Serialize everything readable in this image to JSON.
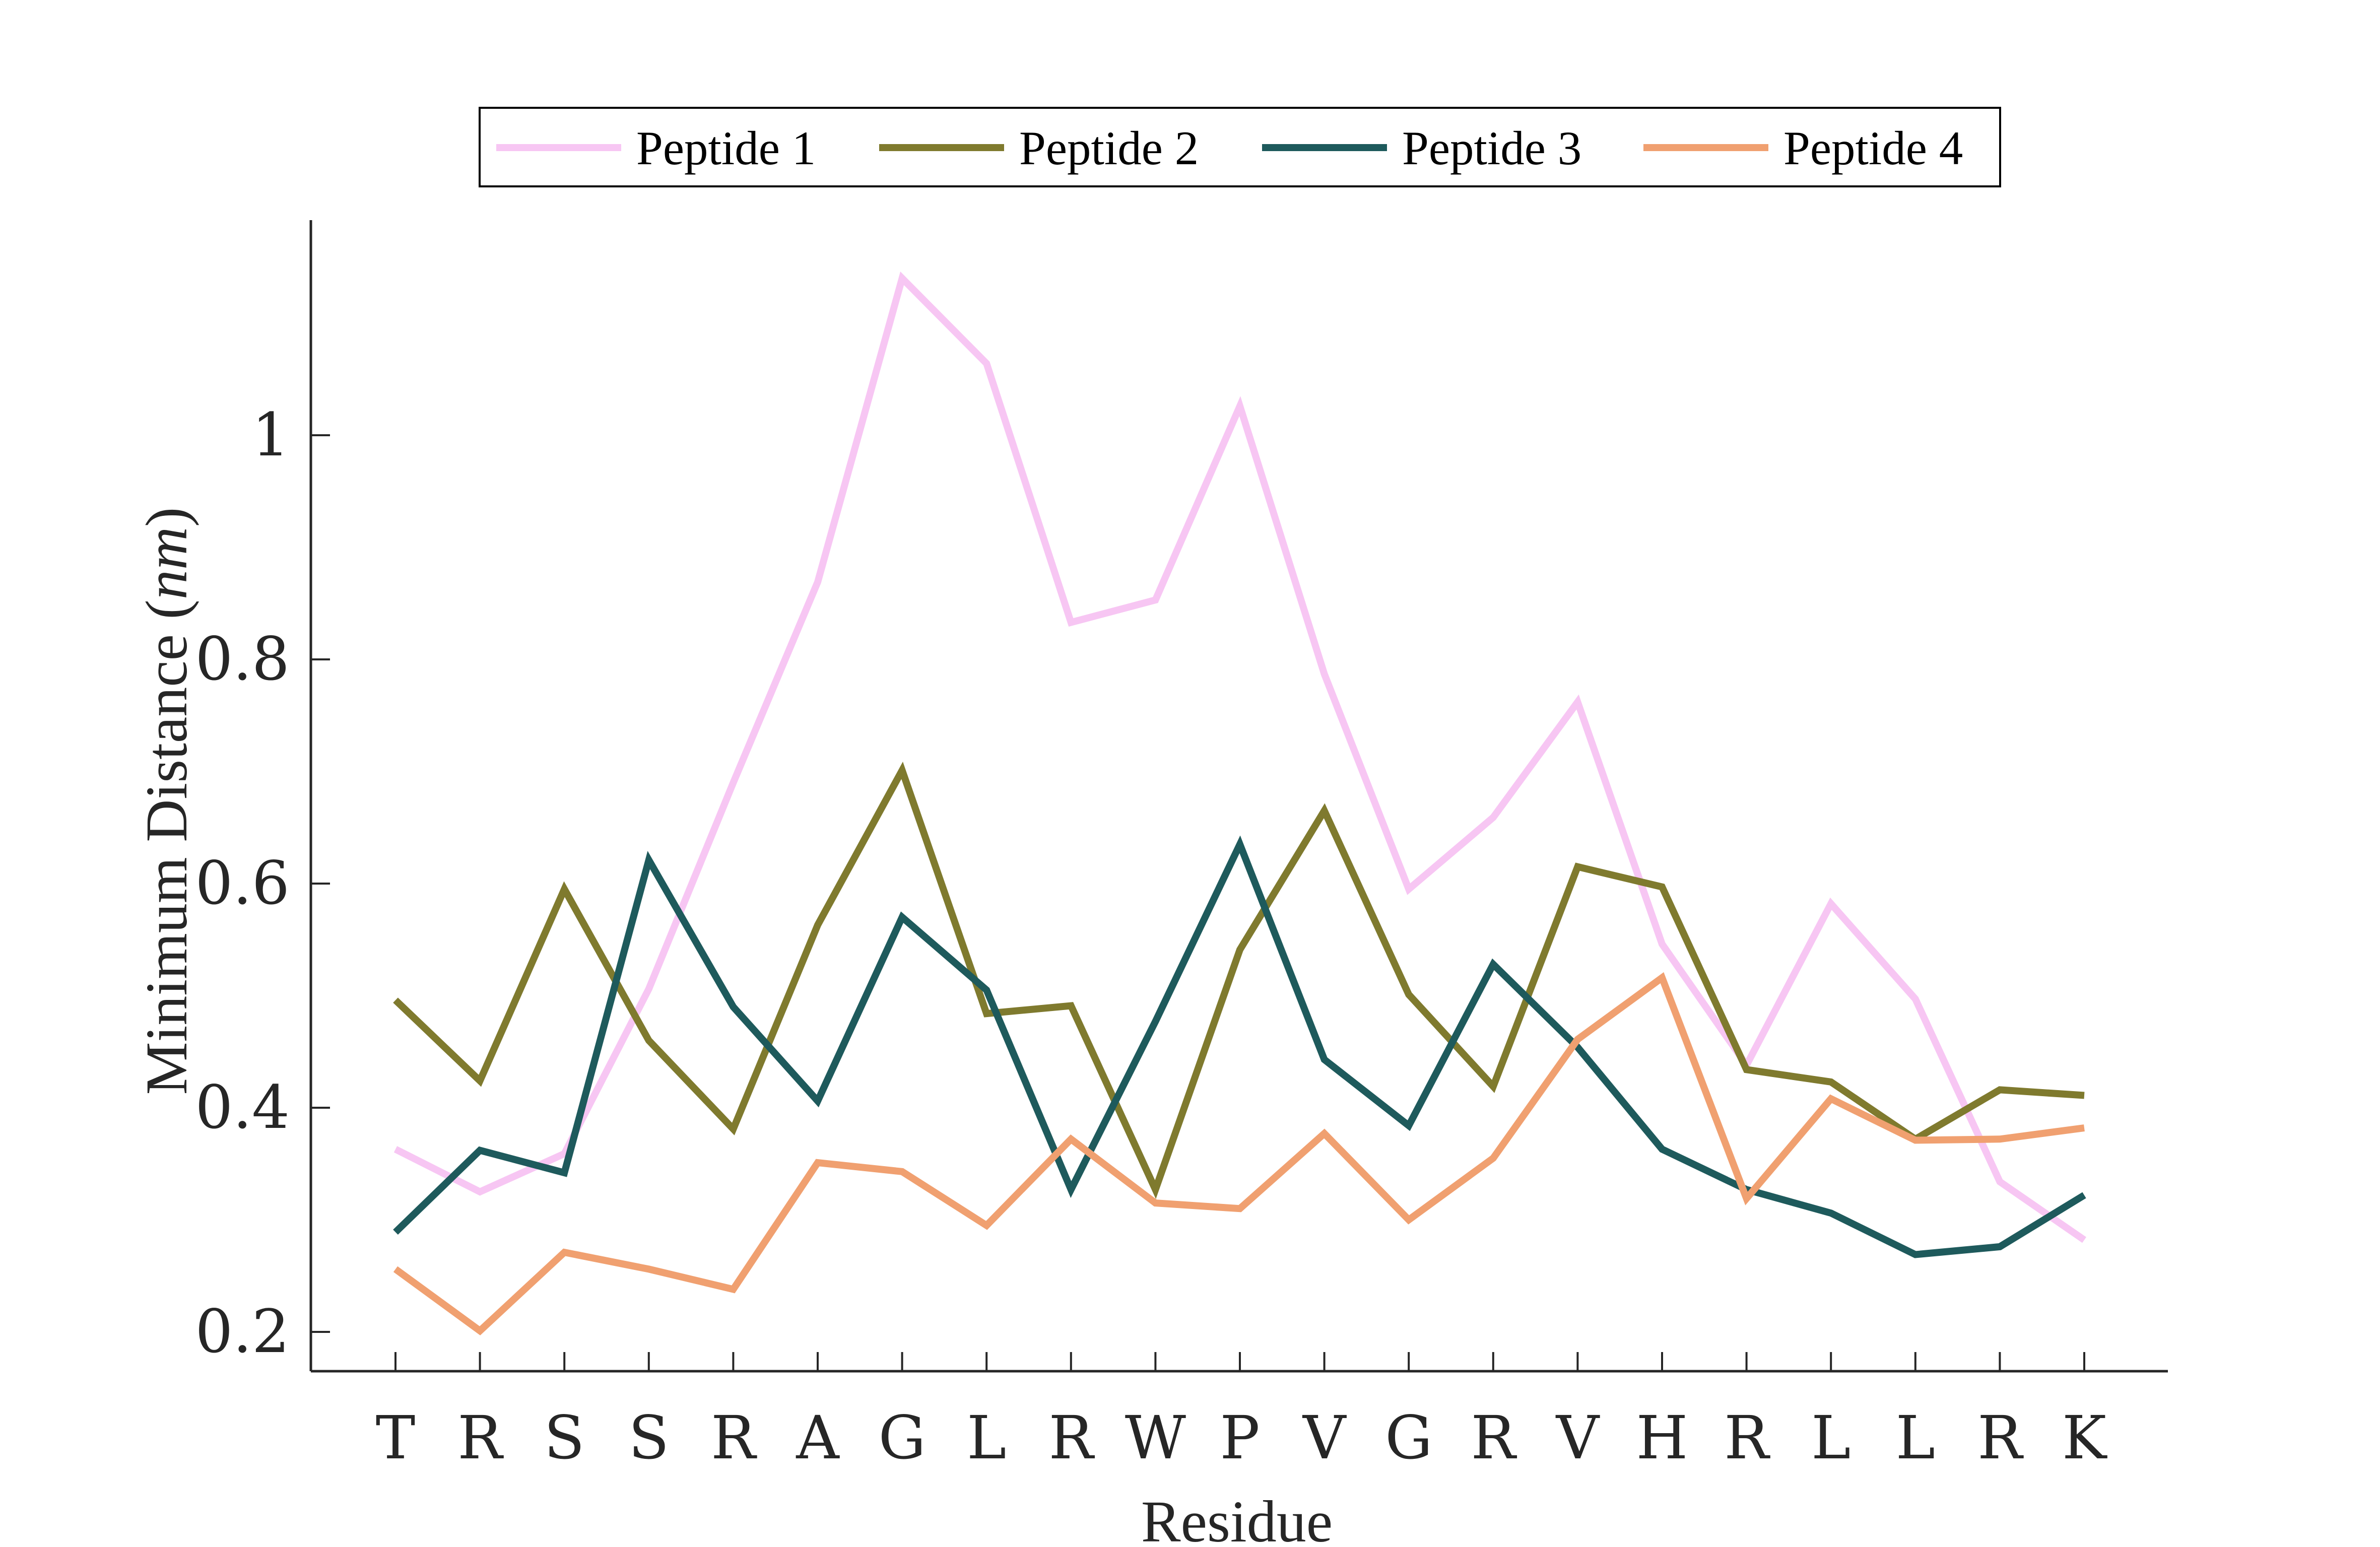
{
  "chart_data": {
    "type": "line",
    "title": "",
    "xlabel": "Residue",
    "ylabel_main": "Minimum Distance (",
    "ylabel_unit": "nm",
    "ylabel_close": ")",
    "ylim": [
      0.16,
      1.3
    ],
    "yticks": [
      0.2,
      0.4,
      0.6,
      0.8,
      1.0
    ],
    "ytick_labels": [
      "0.2",
      "0.4",
      "0.6",
      "0.8",
      "1"
    ],
    "categories": [
      "T",
      "R",
      "S",
      "S",
      "R",
      "A",
      "G",
      "L",
      "R",
      "W",
      "P",
      "V",
      "G",
      "R",
      "V",
      "H",
      "R",
      "L",
      "L",
      "R",
      "K"
    ],
    "grid": false,
    "legend": {
      "position": "top",
      "orientation": "horizontal",
      "boxed": true
    },
    "series": [
      {
        "name": "Peptide 1",
        "color": "#f7c6f3",
        "values": [
          0.363,
          0.325,
          0.359,
          0.506,
          0.69,
          0.869,
          1.14,
          1.064,
          0.833,
          0.853,
          1.026,
          0.787,
          0.595,
          0.659,
          0.762,
          0.546,
          0.438,
          0.582,
          0.497,
          0.334,
          0.282
        ]
      },
      {
        "name": "Peptide 2",
        "color": "#7f7a2e",
        "values": [
          0.496,
          0.424,
          0.595,
          0.46,
          0.381,
          0.563,
          0.701,
          0.484,
          0.491,
          0.327,
          0.541,
          0.665,
          0.501,
          0.419,
          0.615,
          0.597,
          0.434,
          0.423,
          0.372,
          0.416,
          0.411
        ]
      },
      {
        "name": "Peptide 3",
        "color": "#1e5a5c",
        "values": [
          0.289,
          0.362,
          0.342,
          0.621,
          0.49,
          0.406,
          0.57,
          0.505,
          0.327,
          0.477,
          0.635,
          0.443,
          0.384,
          0.528,
          0.454,
          0.363,
          0.327,
          0.306,
          0.269,
          0.276,
          0.322
        ]
      },
      {
        "name": "Peptide 4",
        "color": "#f0a070",
        "values": [
          0.256,
          0.201,
          0.271,
          0.256,
          0.238,
          0.351,
          0.343,
          0.295,
          0.372,
          0.315,
          0.31,
          0.377,
          0.3,
          0.355,
          0.461,
          0.516,
          0.319,
          0.408,
          0.371,
          0.372,
          0.382
        ]
      }
    ]
  }
}
